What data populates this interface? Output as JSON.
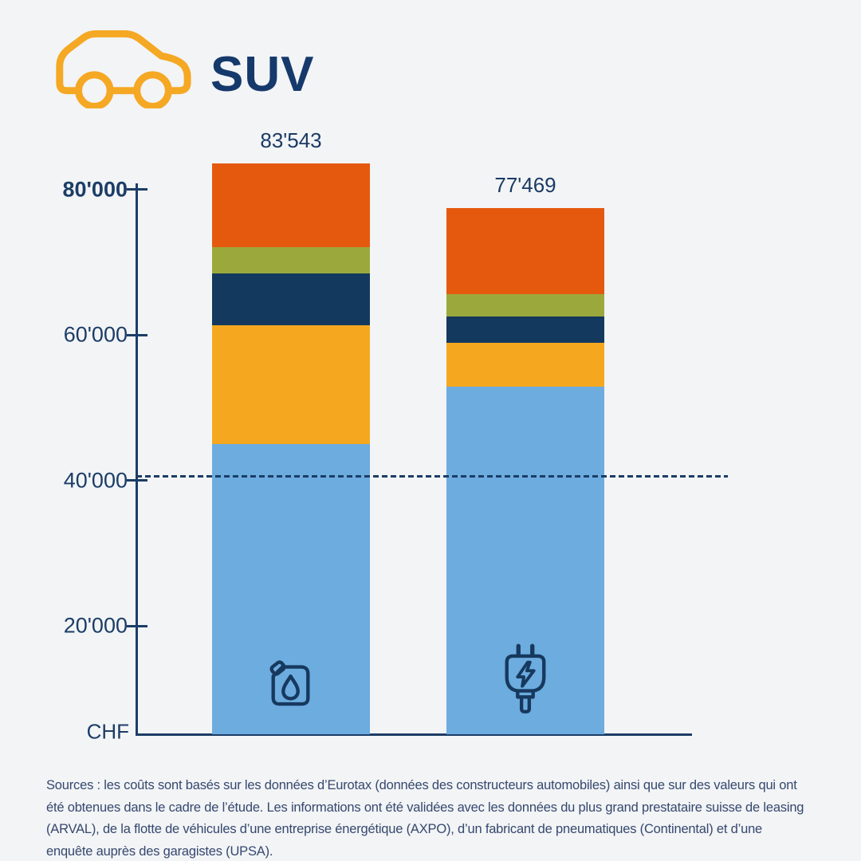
{
  "header": {
    "title": "SUV"
  },
  "colors": {
    "background": "#F2F4F6",
    "navy_text": "#16396B",
    "axis": "#1C3D66",
    "car_icon_stroke": "#F5A823",
    "bar_icon_stroke": "#17395E",
    "segment_blue": "#6CACDF",
    "segment_amber": "#F5A81F",
    "segment_navy": "#14395E",
    "segment_olive": "#9BA93C",
    "segment_orange": "#E5590E"
  },
  "chart_data": {
    "type": "bar",
    "stacked": true,
    "title": "SUV",
    "ylabel": "CHF",
    "axis_unit_label": "CHF",
    "ylim": [
      0,
      84000
    ],
    "grid": false,
    "legend": "none",
    "values_estimated_from_axis": true,
    "yticks": [
      {
        "value": 20000,
        "label": "20'000",
        "bold": false
      },
      {
        "value": 40000,
        "label": "40'000",
        "bold": false
      },
      {
        "value": 60000,
        "label": "60'000",
        "bold": false
      },
      {
        "value": 80000,
        "label": "80'000",
        "bold": true
      }
    ],
    "reference_line_value": 40600,
    "categories": [
      "fuel",
      "electric"
    ],
    "bars": [
      {
        "category": "fuel",
        "icon": "fuel-can-icon",
        "total": 83543,
        "total_label": "83'543",
        "segments": [
          {
            "color": "#6CACDF",
            "value": 45000
          },
          {
            "color": "#F5A81F",
            "value": 16300
          },
          {
            "color": "#14395E",
            "value": 7100
          },
          {
            "color": "#9BA93C",
            "value": 3700
          },
          {
            "color": "#E5590E",
            "value": 11443
          }
        ]
      },
      {
        "category": "electric",
        "icon": "power-plug-icon",
        "total": 77469,
        "total_label": "77'469",
        "segments": [
          {
            "color": "#6CACDF",
            "value": 52900
          },
          {
            "color": "#F5A81F",
            "value": 6000
          },
          {
            "color": "#14395E",
            "value": 3600
          },
          {
            "color": "#9BA93C",
            "value": 3100
          },
          {
            "color": "#E5590E",
            "value": 11869
          }
        ]
      }
    ]
  },
  "footer": {
    "lines": [
      "Sources : les coûts sont basés sur les données d’Eurotax (données des constructeurs automobiles) ainsi que sur des valeurs qui ont",
      "été obtenues dans le cadre de l’étude. Les informations ont été validées avec les données du plus grand prestataire suisse de leasing",
      "(ARVAL), de la flotte de véhicules d’une entreprise énergétique (AXPO), d’un fabricant de pneumatiques (Continental) et d’une",
      "enquête auprès des garagistes (UPSA)."
    ]
  }
}
